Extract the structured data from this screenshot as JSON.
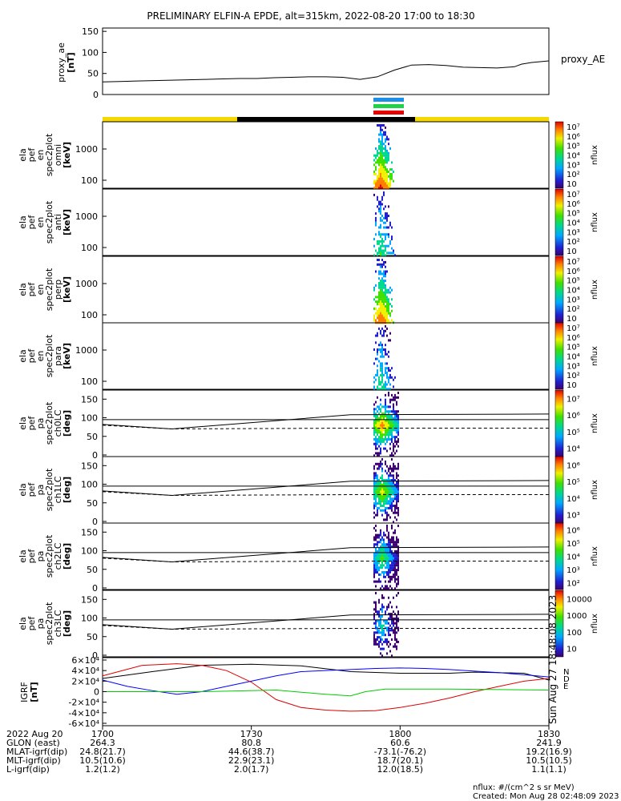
{
  "title": "PRELIMINARY ELFIN-A EPDE, alt=315km, 2022-08-20 17:00 to 18:30",
  "colors": {
    "orbit_yellow": "#f5d800",
    "orbit_black": "#000000",
    "bar_blue": "#1e8fe6",
    "bar_green": "#22d04a",
    "bar_red": "#e60000",
    "bx": "#000000",
    "by": "#0000ff",
    "bz": "#dd0000",
    "bmag": "#00cc00"
  },
  "proxy_ae": {
    "ylabel": [
      "proxy_ae",
      "[nT]"
    ],
    "legend": "proxy_AE",
    "ylim": [
      0,
      150
    ],
    "ticks": [
      "0",
      "50",
      "100",
      "150"
    ],
    "series": [
      [
        0,
        30
      ],
      [
        5,
        31
      ],
      [
        10,
        32
      ],
      [
        15,
        33
      ],
      [
        20,
        34
      ],
      [
        25,
        35
      ],
      [
        30,
        36
      ],
      [
        35,
        37
      ],
      [
        40,
        38
      ],
      [
        45,
        38
      ],
      [
        50,
        40
      ],
      [
        55,
        41
      ],
      [
        60,
        42
      ],
      [
        65,
        42
      ],
      [
        70,
        41
      ],
      [
        75,
        36
      ],
      [
        80,
        42
      ],
      [
        85,
        58
      ],
      [
        90,
        70
      ],
      [
        95,
        71
      ],
      [
        100,
        69
      ],
      [
        105,
        65
      ],
      [
        110,
        64
      ],
      [
        115,
        63
      ],
      [
        120,
        66
      ],
      [
        122,
        72
      ],
      [
        125,
        76
      ],
      [
        130,
        80
      ]
    ]
  },
  "spectrograms": [
    {
      "ylabel": [
        "ela",
        "pef",
        "en",
        "spec2plot",
        "omni",
        "[keV]"
      ],
      "yticks": [
        "100",
        "1000"
      ],
      "cbar": [
        "10",
        "10²",
        "10³",
        "10⁴",
        "10⁵",
        "10⁶",
        "10⁷"
      ],
      "cbar_label": "nflux",
      "intensity": 1.0
    },
    {
      "ylabel": [
        "ela",
        "pef",
        "en",
        "spec2plot",
        "anti",
        "[keV]"
      ],
      "yticks": [
        "100",
        "1000"
      ],
      "cbar": [
        "10",
        "10²",
        "10³",
        "10⁴",
        "10⁵",
        "10⁶",
        "10⁷"
      ],
      "cbar_label": "nflux",
      "intensity": 0.45
    },
    {
      "ylabel": [
        "ela",
        "pef",
        "en",
        "spec2plot",
        "perp",
        "[keV]"
      ],
      "yticks": [
        "100",
        "1000"
      ],
      "cbar": [
        "10",
        "10²",
        "10³",
        "10⁴",
        "10⁵",
        "10⁶",
        "10⁷"
      ],
      "cbar_label": "nflux",
      "intensity": 0.95
    },
    {
      "ylabel": [
        "ela",
        "pef",
        "en",
        "spec2plot",
        "para",
        "[keV]"
      ],
      "yticks": [
        "100",
        "1000"
      ],
      "cbar": [
        "10",
        "10²",
        "10³",
        "10⁴",
        "10⁵",
        "10⁶",
        "10⁷"
      ],
      "cbar_label": "nflux",
      "intensity": 0.4
    }
  ],
  "pitch_panels": [
    {
      "ylabel": [
        "ela",
        "pef",
        "pa",
        "spec2plot",
        "ch0LC",
        "[deg]"
      ],
      "cbar": [
        "10⁴",
        "10⁵",
        "10⁶",
        "10⁷"
      ],
      "cbar_label": "nflux"
    },
    {
      "ylabel": [
        "ela",
        "pef",
        "pa",
        "spec2plot",
        "ch1LC",
        "[deg]"
      ],
      "cbar": [
        "10³",
        "10⁴",
        "10⁵",
        "10⁶"
      ],
      "cbar_label": "nflux"
    },
    {
      "ylabel": [
        "ela",
        "pef",
        "pa",
        "spec2plot",
        "ch2LC",
        "[deg]"
      ],
      "cbar": [
        "10²",
        "10³",
        "10⁴",
        "10⁵",
        "10⁶"
      ],
      "cbar_label": "nflux"
    },
    {
      "ylabel": [
        "ela",
        "pef",
        "pa",
        "spec2plot",
        "ch3LC",
        "[deg]"
      ],
      "cbar": [
        "10",
        "100",
        "1000",
        "10000"
      ],
      "cbar_label": "nflux"
    }
  ],
  "pitch_yticks": [
    "0",
    "50",
    "100",
    "150"
  ],
  "igrf": {
    "ylabel": [
      "IGRF",
      "[nT]"
    ],
    "yticks": [
      "-6×10⁴",
      "-4×10⁴",
      "-2×10⁴",
      "0",
      "2×10⁴",
      "4×10⁴",
      "6×10⁴"
    ],
    "legend": [
      "N",
      "E",
      "D"
    ],
    "side_text": "Sun Aug 27 18:48:08 2023"
  },
  "chart_data": {
    "type": "line",
    "title": "PRELIMINARY ELFIN-A EPDE, alt=315km, 2022-08-20 17:00 to 18:30",
    "x_unit": "minutes since 17:00 UT",
    "xlim": [
      0,
      90
    ],
    "igrf_series": [
      {
        "name": "N",
        "values": [
          [
            0,
            25000
          ],
          [
            10,
            38000
          ],
          [
            20,
            50000
          ],
          [
            30,
            52000
          ],
          [
            40,
            49000
          ],
          [
            50,
            38000
          ],
          [
            60,
            35000
          ],
          [
            70,
            35000
          ],
          [
            75,
            37000
          ],
          [
            85,
            35000
          ],
          [
            90,
            22000
          ]
        ]
      },
      {
        "name": "D",
        "values": [
          [
            0,
            22000
          ],
          [
            5,
            10000
          ],
          [
            10,
            2000
          ],
          [
            15,
            -5000
          ],
          [
            20,
            0
          ],
          [
            25,
            10000
          ],
          [
            30,
            20000
          ],
          [
            35,
            30000
          ],
          [
            40,
            38000
          ],
          [
            45,
            40000
          ],
          [
            50,
            42000
          ],
          [
            55,
            44000
          ],
          [
            60,
            45000
          ],
          [
            65,
            44000
          ],
          [
            70,
            42000
          ],
          [
            75,
            39000
          ],
          [
            80,
            36000
          ],
          [
            85,
            32000
          ],
          [
            90,
            28000
          ]
        ]
      },
      {
        "name": "E",
        "values": [
          [
            0,
            30000
          ],
          [
            8,
            50000
          ],
          [
            15,
            53000
          ],
          [
            20,
            50000
          ],
          [
            25,
            40000
          ],
          [
            30,
            18000
          ],
          [
            35,
            -15000
          ],
          [
            40,
            -30000
          ],
          [
            45,
            -35000
          ],
          [
            50,
            -37000
          ],
          [
            55,
            -36000
          ],
          [
            60,
            -30000
          ],
          [
            65,
            -22000
          ],
          [
            70,
            -12000
          ],
          [
            75,
            0
          ],
          [
            80,
            10000
          ],
          [
            85,
            20000
          ],
          [
            90,
            25000
          ]
        ]
      },
      {
        "name": "",
        "values": [
          [
            0,
            0
          ],
          [
            20,
            0
          ],
          [
            35,
            3000
          ],
          [
            45,
            -5000
          ],
          [
            50,
            -8000
          ],
          [
            53,
            0
          ],
          [
            57,
            5000
          ],
          [
            70,
            5000
          ],
          [
            90,
            3000
          ]
        ]
      }
    ],
    "event_window": [
      50,
      55
    ]
  },
  "x_axis": {
    "rows": [
      {
        "label": "2022 Aug 20",
        "values": [
          "1700",
          "1730",
          "1800",
          "1830"
        ]
      },
      {
        "label": "GLON (east)",
        "values": [
          "264.3",
          "80.8",
          "60.6",
          "241.9"
        ]
      },
      {
        "label": "MLAT-igrf(dip)",
        "values": [
          "24.8(21.7)",
          "44.6(38.7)",
          "-73.1(-76.2)",
          "19.2(16.9)"
        ]
      },
      {
        "label": "MLT-igrf(dip)",
        "values": [
          "10.5(10.6)",
          "22.9(23.1)",
          "18.7(20.1)",
          "10.5(10.5)"
        ]
      },
      {
        "label": "L-igrf(dip)",
        "values": [
          "1.2(1.2)",
          "2.0(1.7)",
          "12.0(18.5)",
          "1.1(1.1)"
        ]
      }
    ]
  },
  "footer": {
    "line1": "nflux: #/(cm^2 s sr MeV)",
    "line2": "Created: Mon Aug 28 02:48:09 2023"
  }
}
